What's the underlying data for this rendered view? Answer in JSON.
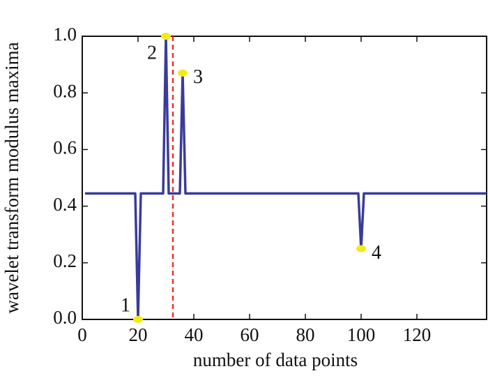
{
  "chart_data": {
    "type": "line",
    "xlabel": "number of data points",
    "ylabel": "wavelet transform modulus maxima",
    "xlim": [
      0,
      145
    ],
    "ylim": [
      0,
      1
    ],
    "xticks": [
      0,
      20,
      40,
      60,
      80,
      100,
      120
    ],
    "yticks": [
      {
        "value": 0,
        "label": "0.0"
      },
      0.2,
      0.4,
      0.6,
      0.8,
      {
        "value": 1,
        "label": "1.0"
      }
    ],
    "series": [
      {
        "color": "#3a3a9c",
        "x": [
          1,
          19,
          20,
          21,
          29,
          30,
          31,
          35,
          36,
          37,
          99,
          100,
          101,
          145
        ],
        "values": [
          0.445,
          0.445,
          0,
          0.445,
          0.445,
          1,
          0.445,
          0.445,
          0.87,
          0.445,
          0.445,
          0.25,
          0.445,
          0.445
        ]
      }
    ],
    "annotations": [
      {
        "text": "1",
        "x": 20,
        "y": 0
      },
      {
        "text": "2",
        "x": 30,
        "y": 1
      },
      {
        "text": "3",
        "x": 36,
        "y": 0.87
      },
      {
        "text": "4",
        "x": 100,
        "y": 0.25
      }
    ],
    "marker_color": "#f2ea1a",
    "vline": {
      "x": 32.5,
      "color": "#e8322c"
    }
  }
}
